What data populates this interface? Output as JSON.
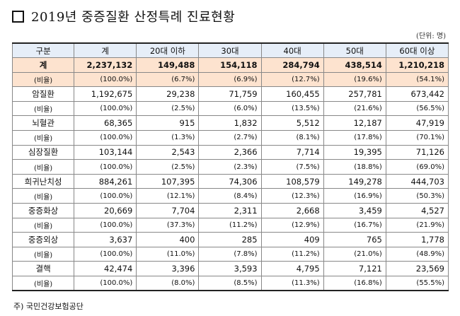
{
  "title": "2019년 중증질환 산정특례 진료현황",
  "unit": "(단위: 명)",
  "source": "주) 국민건강보험공단",
  "headers": [
    "구분",
    "계",
    "20대 이하",
    "30대",
    "40대",
    "50대",
    "60대 이상"
  ],
  "total": {
    "label": "계",
    "values": [
      "2,237,132",
      "149,488",
      "154,118",
      "284,794",
      "438,514",
      "1,210,218"
    ],
    "ratio_label": "(비율)",
    "ratios": [
      "(100.0%)",
      "(6.7%)",
      "(6.9%)",
      "(12.7%)",
      "(19.6%)",
      "(54.1%)"
    ]
  },
  "categories": [
    {
      "label": "암질환",
      "values": [
        "1,192,675",
        "29,238",
        "71,759",
        "160,455",
        "257,781",
        "673,442"
      ],
      "ratio_label": "(비율)",
      "ratios": [
        "(100.0%)",
        "(2.5%)",
        "(6.0%)",
        "(13.5%)",
        "(21.6%)",
        "(56.5%)"
      ]
    },
    {
      "label": "뇌혈관",
      "values": [
        "68,365",
        "915",
        "1,832",
        "5,512",
        "12,187",
        "47,919"
      ],
      "ratio_label": "(비율)",
      "ratios": [
        "(100.0%)",
        "(1.3%)",
        "(2.7%)",
        "(8.1%)",
        "(17.8%)",
        "(70.1%)"
      ]
    },
    {
      "label": "심장질환",
      "values": [
        "103,144",
        "2,543",
        "2,366",
        "7,714",
        "19,395",
        "71,126"
      ],
      "ratio_label": "(비율)",
      "ratios": [
        "(100.0%)",
        "(2.5%)",
        "(2.3%)",
        "(7.5%)",
        "(18.8%)",
        "(69.0%)"
      ]
    },
    {
      "label": "희귀난치성",
      "values": [
        "884,261",
        "107,395",
        "74,306",
        "108,579",
        "149,278",
        "444,703"
      ],
      "ratio_label": "(비율)",
      "ratios": [
        "(100.0%)",
        "(12.1%)",
        "(8.4%)",
        "(12.3%)",
        "(16.9%)",
        "(50.3%)"
      ]
    },
    {
      "label": "중증화상",
      "values": [
        "20,669",
        "7,704",
        "2,311",
        "2,668",
        "3,459",
        "4,527"
      ],
      "ratio_label": "(비율)",
      "ratios": [
        "(100.0%)",
        "(37.3%)",
        "(11.2%)",
        "(12.9%)",
        "(16.7%)",
        "(21.9%)"
      ]
    },
    {
      "label": "중증외상",
      "values": [
        "3,637",
        "400",
        "285",
        "409",
        "765",
        "1,778"
      ],
      "ratio_label": "(비율)",
      "ratios": [
        "(100.0%)",
        "(11.0%)",
        "(7.8%)",
        "(11.2%)",
        "(21.0%)",
        "(48.9%)"
      ]
    },
    {
      "label": "결핵",
      "values": [
        "42,474",
        "3,396",
        "3,593",
        "4,795",
        "7,121",
        "23,569"
      ],
      "ratio_label": "(비율)",
      "ratios": [
        "(100.0%)",
        "(8.0%)",
        "(8.5%)",
        "(11.3%)",
        "(16.8%)",
        "(55.5%)"
      ]
    }
  ]
}
